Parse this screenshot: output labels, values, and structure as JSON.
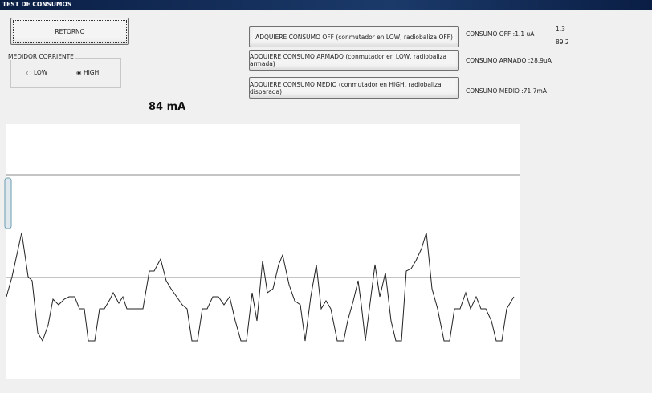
{
  "window": {
    "title": "TEST DE CONSUMOS"
  },
  "retorno": "RETORNO",
  "medidor": {
    "title": "MEDIDOR CORRIENTE",
    "options": [
      "LOW",
      "HIGH"
    ]
  },
  "reading": "84 mA",
  "buttons": [
    "ADQUIERE CONSUMO OFF (conmutador en LOW, radiobaliza OFF)",
    "ADQUIERE CONSUMO ARMADO (conmutador en LOW, radiobaliza armada)",
    "ADQUIERE CONSUMO MEDIO (conmutador en HIGH, radiobaliza disparada)"
  ],
  "results": [
    "CONSUMO OFF :1.1 uA",
    "CONSUMO ARMADO :28.9uA",
    "CONSUMO MEDIO :71.7mA"
  ],
  "side_values": [
    "1.3",
    "89.2"
  ]
}
